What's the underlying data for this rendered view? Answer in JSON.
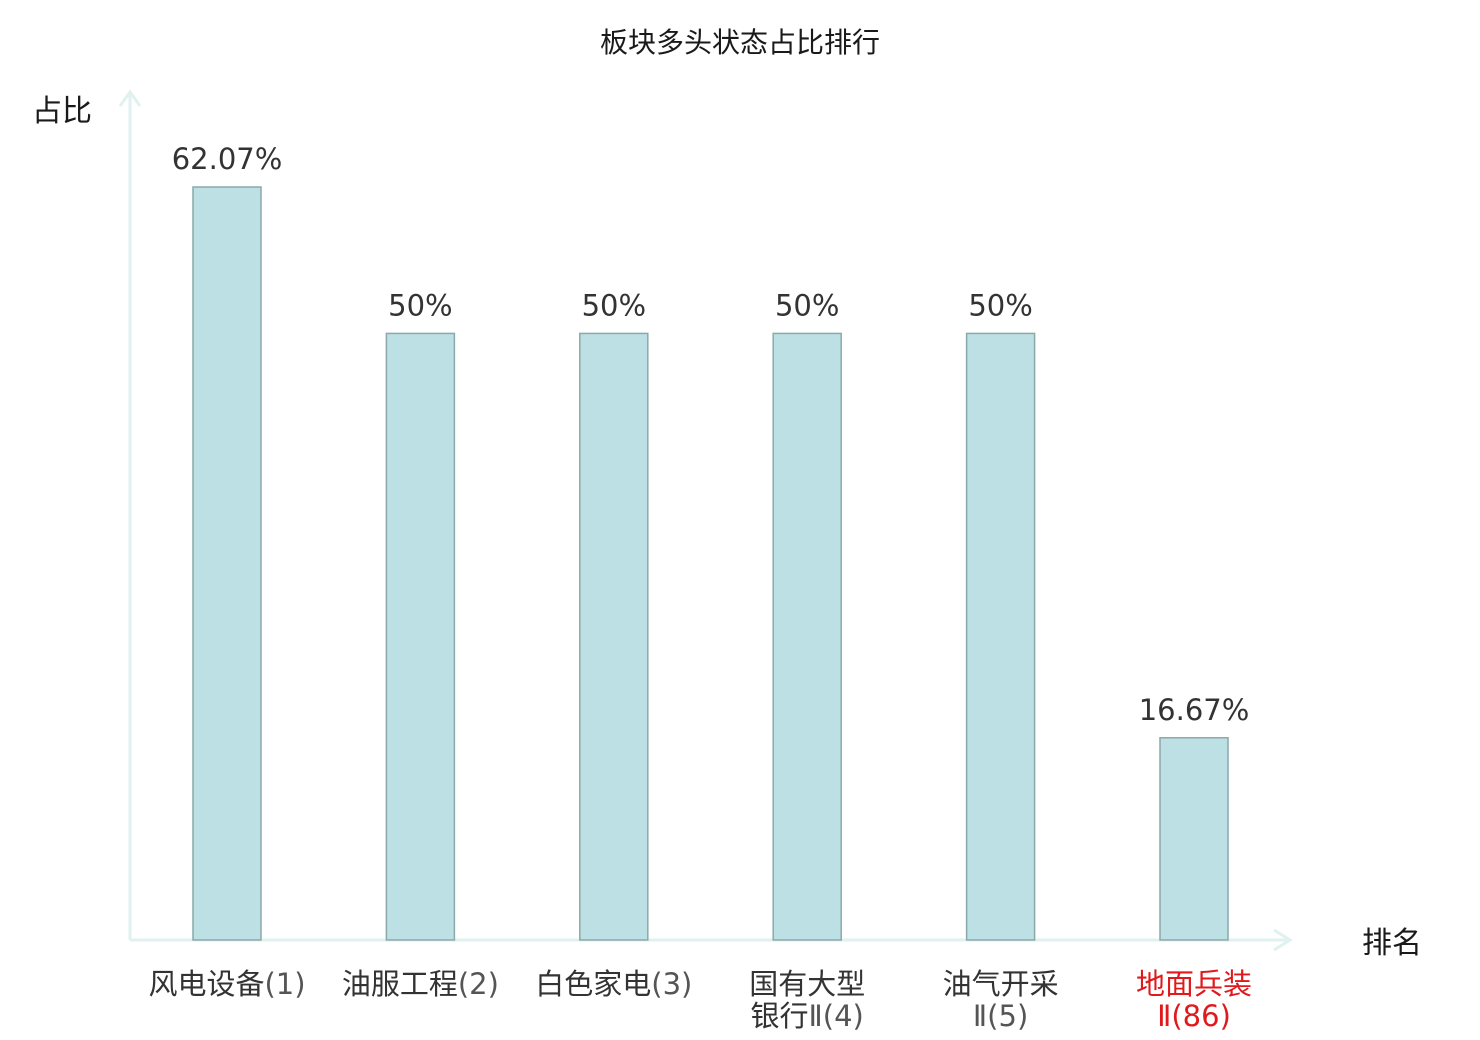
{
  "chart_data": {
    "type": "bar",
    "title": "板块多头状态占比排行",
    "xlabel": "排名",
    "ylabel": "占比",
    "categories": [
      {
        "name": "风电设备",
        "rank": "(1)",
        "highlight": false
      },
      {
        "name": "油服工程",
        "rank": "(2)",
        "highlight": false
      },
      {
        "name": "白色家电",
        "rank": "(3)",
        "highlight": false
      },
      {
        "name": "国有大型银行Ⅱ",
        "rank": "(4)",
        "highlight": false
      },
      {
        "name": "油气开采Ⅱ",
        "rank": "(5)",
        "highlight": false
      },
      {
        "name": "地面兵装Ⅱ",
        "rank": "(86)",
        "highlight": true
      }
    ],
    "values": [
      62.07,
      50,
      50,
      50,
      50,
      16.67
    ],
    "value_labels": [
      "62.07%",
      "50%",
      "50%",
      "50%",
      "50%",
      "16.67%"
    ],
    "ylim": [
      0,
      62.07
    ],
    "grid": false,
    "legend": "none"
  },
  "colors": {
    "bar_fill": "#bce0e3",
    "bar_stroke": "#8aa9ab",
    "axis": "#e0f2ef",
    "text": "#1a1a1a",
    "name_text": "#333333",
    "rank_text": "#555555",
    "highlight": "#e0191c"
  }
}
